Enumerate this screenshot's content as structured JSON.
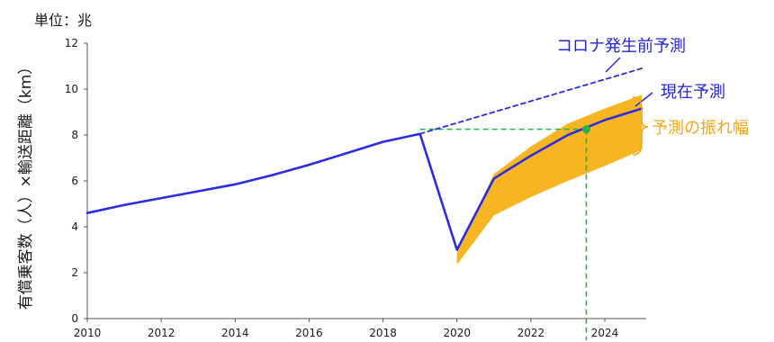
{
  "chart_data": {
    "type": "line",
    "unit_label": "単位：兆",
    "ylabel": "有償乗客数（人）×輸送距離（km）",
    "ylim": [
      0,
      12
    ],
    "yticks": [
      0,
      2,
      4,
      6,
      8,
      10,
      12
    ],
    "xlim": [
      2010,
      2025
    ],
    "xticks": [
      2010,
      2012,
      2014,
      2016,
      2018,
      2020,
      2022,
      2024
    ],
    "series": [
      {
        "name": "現在予測",
        "style": "solid",
        "color": "#2b2be0",
        "x": [
          2010,
          2011,
          2012,
          2013,
          2014,
          2015,
          2016,
          2017,
          2018,
          2019,
          2020,
          2021,
          2022,
          2023,
          2024,
          2025
        ],
        "y": [
          4.6,
          4.95,
          5.25,
          5.55,
          5.85,
          6.25,
          6.7,
          7.2,
          7.7,
          8.05,
          3.0,
          6.1,
          7.1,
          8.0,
          8.65,
          9.15
        ]
      },
      {
        "name": "コロナ発生前予測",
        "style": "dashed",
        "color": "#2b2be0",
        "x": [
          2019,
          2025
        ],
        "y": [
          8.05,
          10.9
        ]
      }
    ],
    "band": {
      "name": "予測の振れ幅",
      "color": "#f7b521",
      "x": [
        2020,
        2021,
        2022,
        2023,
        2024,
        2025
      ],
      "upper": [
        2.9,
        6.3,
        7.5,
        8.5,
        9.15,
        9.75
      ],
      "lower": [
        2.35,
        4.5,
        5.3,
        6.0,
        6.65,
        7.35
      ]
    },
    "reference": {
      "color": "#27b34a",
      "point": {
        "x": 2023.5,
        "y": 8.25
      },
      "horizontal_from_x": 2019
    },
    "annotations": {
      "pre_covid": "コロナ発生前予測",
      "current": "現在予測",
      "range": "予測の振れ幅"
    },
    "grid": false
  }
}
